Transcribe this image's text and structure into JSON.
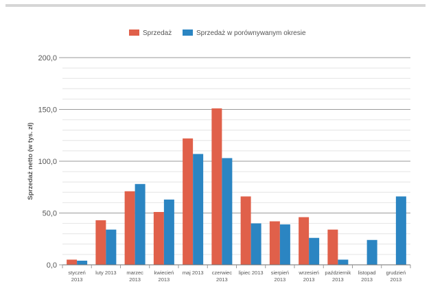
{
  "chart_data": {
    "type": "bar",
    "title": "",
    "xlabel": "",
    "ylabel": "Sprzedaż netto (w tys. zł)",
    "ylim": [
      0,
      200
    ],
    "yticks": [
      "0,0",
      "50,0",
      "100,0",
      "150,0",
      "200,0"
    ],
    "categories": [
      [
        "styczeń",
        "2013"
      ],
      [
        "luty 2013"
      ],
      [
        "marzec",
        "2013"
      ],
      [
        "kwiecień",
        "2013"
      ],
      [
        "maj 2013"
      ],
      [
        "czerwiec",
        "2013"
      ],
      [
        "lipiec 2013"
      ],
      [
        "sierpień",
        "2013"
      ],
      [
        "wrzesień",
        "2013"
      ],
      [
        "październik",
        "2013"
      ],
      [
        "listopad",
        "2013"
      ],
      [
        "grudzień",
        "2013"
      ]
    ],
    "series": [
      {
        "name": "Sprzedaż",
        "color": "#e0604a",
        "values": [
          5,
          43,
          71,
          51,
          122,
          151,
          66,
          42,
          46,
          34,
          0,
          0
        ]
      },
      {
        "name": "Sprzedaż w porównywanym okresie",
        "color": "#2b85c2",
        "values": [
          4,
          34,
          78,
          63,
          107,
          103,
          40,
          39,
          26,
          5,
          24,
          66
        ]
      }
    ],
    "grid": true,
    "legend": "top-center"
  }
}
